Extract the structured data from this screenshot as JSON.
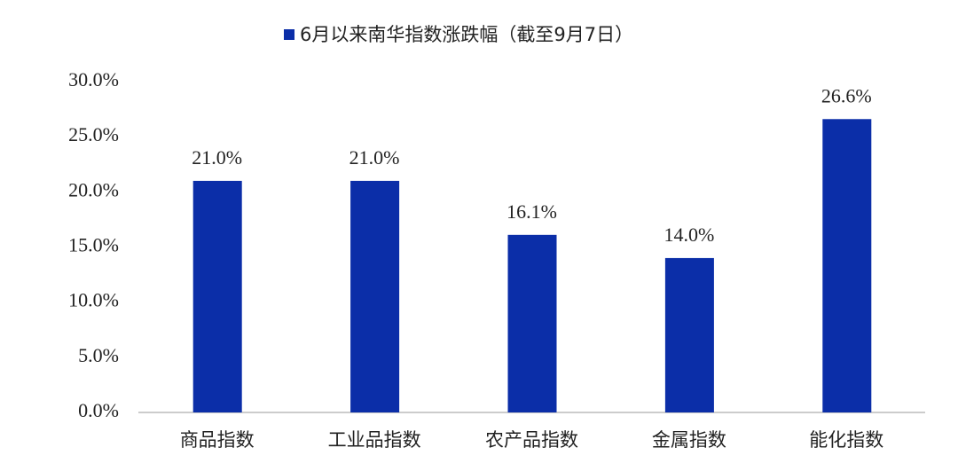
{
  "chart_data": {
    "type": "bar",
    "categories": [
      "商品指数",
      "工业品指数",
      "农产品指数",
      "金属指数",
      "能化指数"
    ],
    "series": [
      {
        "name": "6月以来南华指数涨跌幅（截至9月7日）",
        "color": "#0b2ea8",
        "values": [
          21.0,
          21.0,
          16.1,
          14.0,
          26.6
        ],
        "value_labels": [
          "21.0%",
          "21.0%",
          "16.1%",
          "14.0%",
          "26.6%"
        ]
      }
    ],
    "ylim": [
      0,
      30
    ],
    "yticks": [
      {
        "value": 0,
        "label": "0.0%"
      },
      {
        "value": 5,
        "label": "5.0%"
      },
      {
        "value": 10,
        "label": "10.0%"
      },
      {
        "value": 15,
        "label": "15.0%"
      },
      {
        "value": 20,
        "label": "20.0%"
      },
      {
        "value": 25,
        "label": "25.0%"
      },
      {
        "value": 30,
        "label": "30.0%"
      }
    ],
    "legend": "top"
  }
}
